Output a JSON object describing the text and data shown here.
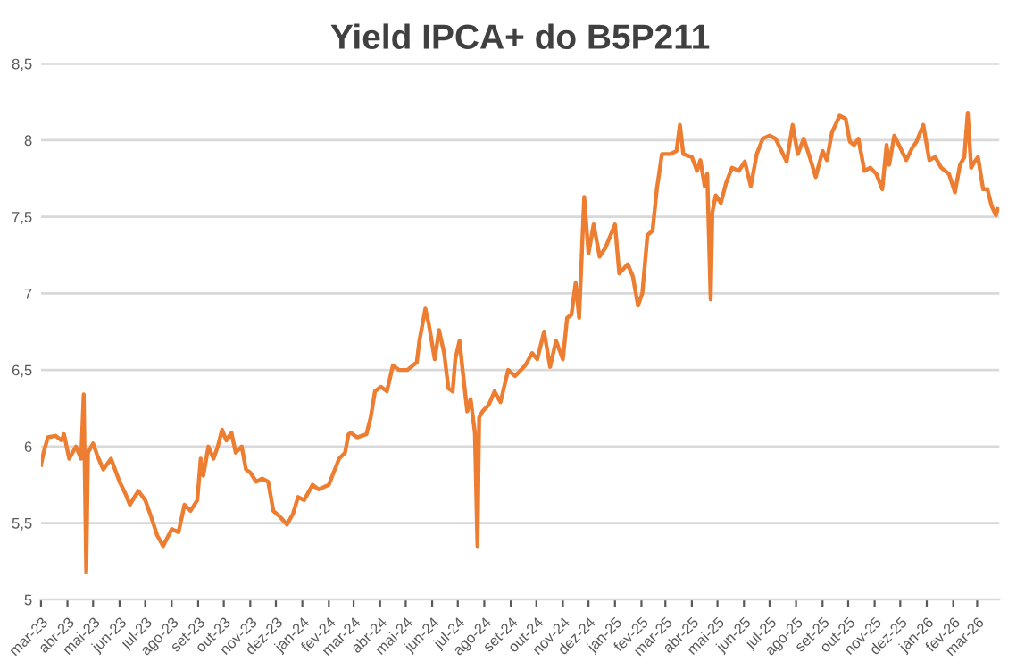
{
  "chart_data": {
    "type": "line",
    "title": "Yield IPCA+ do B5P211",
    "x": [
      "2023-03-01",
      "2023-03-04",
      "2023-03-09",
      "2023-03-18",
      "2023-03-25",
      "2023-03-28",
      "2023-04-03",
      "2023-04-11",
      "2023-04-17",
      "2023-04-20",
      "2023-04-23",
      "2023-04-25",
      "2023-05-01",
      "2023-05-06",
      "2023-05-13",
      "2023-05-22",
      "2023-06-01",
      "2023-06-08",
      "2023-06-13",
      "2023-06-23",
      "2023-07-01",
      "2023-07-08",
      "2023-07-15",
      "2023-07-22",
      "2023-08-01",
      "2023-08-09",
      "2023-08-16",
      "2023-08-23",
      "2023-08-31",
      "2023-09-04",
      "2023-09-07",
      "2023-09-13",
      "2023-09-19",
      "2023-09-24",
      "2023-09-29",
      "2023-10-04",
      "2023-10-10",
      "2023-10-15",
      "2023-10-22",
      "2023-10-27",
      "2023-11-01",
      "2023-11-08",
      "2023-11-15",
      "2023-11-22",
      "2023-11-28",
      "2023-12-06",
      "2023-12-14",
      "2023-12-21",
      "2023-12-27",
      "2024-01-03",
      "2024-01-13",
      "2024-01-20",
      "2024-02-01",
      "2024-02-08",
      "2024-02-13",
      "2024-02-20",
      "2024-02-24",
      "2024-02-27",
      "2024-03-05",
      "2024-03-16",
      "2024-03-21",
      "2024-03-26",
      "2024-04-02",
      "2024-04-09",
      "2024-04-16",
      "2024-04-23",
      "2024-05-03",
      "2024-05-14",
      "2024-05-17",
      "2024-05-24",
      "2024-05-28",
      "2024-06-04",
      "2024-06-09",
      "2024-06-15",
      "2024-06-20",
      "2024-06-25",
      "2024-06-28",
      "2024-07-03",
      "2024-07-07",
      "2024-07-12",
      "2024-07-16",
      "2024-07-21",
      "2024-07-24",
      "2024-07-26",
      "2024-07-30",
      "2024-08-06",
      "2024-08-13",
      "2024-08-20",
      "2024-08-29",
      "2024-09-06",
      "2024-09-18",
      "2024-09-26",
      "2024-10-02",
      "2024-10-10",
      "2024-10-17",
      "2024-10-24",
      "2024-11-01",
      "2024-11-06",
      "2024-11-11",
      "2024-11-16",
      "2024-11-20",
      "2024-11-26",
      "2024-12-01",
      "2024-12-07",
      "2024-12-14",
      "2024-12-21",
      "2025-01-01",
      "2025-01-06",
      "2025-01-16",
      "2025-01-22",
      "2025-01-28",
      "2025-02-02",
      "2025-02-08",
      "2025-02-14",
      "2025-02-19",
      "2025-02-25",
      "2025-03-07",
      "2025-03-14",
      "2025-03-18",
      "2025-03-22",
      "2025-04-01",
      "2025-04-07",
      "2025-04-11",
      "2025-04-16",
      "2025-04-19",
      "2025-04-23",
      "2025-04-25",
      "2025-04-29",
      "2025-05-05",
      "2025-05-11",
      "2025-05-18",
      "2025-05-26",
      "2025-06-02",
      "2025-06-09",
      "2025-06-16",
      "2025-06-23",
      "2025-07-01",
      "2025-07-08",
      "2025-07-15",
      "2025-07-21",
      "2025-07-28",
      "2025-08-03",
      "2025-08-10",
      "2025-08-17",
      "2025-08-24",
      "2025-09-01",
      "2025-09-06",
      "2025-09-12",
      "2025-09-21",
      "2025-09-28",
      "2025-10-03",
      "2025-10-08",
      "2025-10-13",
      "2025-10-20",
      "2025-10-27",
      "2025-11-03",
      "2025-11-10",
      "2025-11-15",
      "2025-11-18",
      "2025-11-24",
      "2025-12-01",
      "2025-12-08",
      "2025-12-15",
      "2025-12-20",
      "2025-12-28",
      "2026-01-04",
      "2026-01-11",
      "2026-01-18",
      "2026-01-27",
      "2026-02-03",
      "2026-02-09",
      "2026-02-14",
      "2026-02-18",
      "2026-02-22",
      "2026-02-26",
      "2026-03-02",
      "2026-03-08",
      "2026-03-13",
      "2026-03-18",
      "2026-03-23",
      "2026-03-25"
    ],
    "series": [
      {
        "color": "#ed7d31",
        "values": [
          5.88,
          5.96,
          6.06,
          6.07,
          6.04,
          6.08,
          5.92,
          6.0,
          5.92,
          6.34,
          5.18,
          5.96,
          6.02,
          5.94,
          5.85,
          5.92,
          5.77,
          5.69,
          5.62,
          5.71,
          5.65,
          5.54,
          5.42,
          5.35,
          5.46,
          5.44,
          5.62,
          5.58,
          5.65,
          5.92,
          5.81,
          6.0,
          5.92,
          6.0,
          6.11,
          6.04,
          6.09,
          5.96,
          6.0,
          5.85,
          5.83,
          5.77,
          5.79,
          5.77,
          5.58,
          5.54,
          5.49,
          5.56,
          5.67,
          5.65,
          5.75,
          5.72,
          5.75,
          5.85,
          5.92,
          5.96,
          6.08,
          6.09,
          6.06,
          6.08,
          6.19,
          6.36,
          6.39,
          6.36,
          6.53,
          6.5,
          6.5,
          6.55,
          6.69,
          6.9,
          6.8,
          6.57,
          6.76,
          6.61,
          6.38,
          6.36,
          6.57,
          6.69,
          6.48,
          6.23,
          6.31,
          6.09,
          5.35,
          6.19,
          6.23,
          6.27,
          6.36,
          6.29,
          6.5,
          6.46,
          6.53,
          6.61,
          6.57,
          6.75,
          6.52,
          6.69,
          6.57,
          6.84,
          6.86,
          7.07,
          6.84,
          7.63,
          7.26,
          7.45,
          7.24,
          7.3,
          7.45,
          7.13,
          7.19,
          7.11,
          6.92,
          7.0,
          7.38,
          7.41,
          7.68,
          7.91,
          7.91,
          7.93,
          8.1,
          7.91,
          7.89,
          7.8,
          7.87,
          7.7,
          7.78,
          6.96,
          7.53,
          7.64,
          7.59,
          7.72,
          7.82,
          7.8,
          7.86,
          7.7,
          7.91,
          8.01,
          8.03,
          8.01,
          7.93,
          7.86,
          8.1,
          7.91,
          8.01,
          7.89,
          7.76,
          7.93,
          7.87,
          8.05,
          8.16,
          8.14,
          7.99,
          7.97,
          8.01,
          7.8,
          7.82,
          7.78,
          7.68,
          7.97,
          7.84,
          8.03,
          7.95,
          7.87,
          7.95,
          7.99,
          8.1,
          7.87,
          7.89,
          7.82,
          7.78,
          7.66,
          7.84,
          7.89,
          8.18,
          7.82,
          7.86,
          7.89,
          7.68,
          7.68,
          7.57,
          7.51,
          7.55
        ]
      }
    ],
    "xlim": [
      "2023-03-01",
      "2026-03-27"
    ],
    "xticks": [
      {
        "value": "2023-03-01",
        "label": "mar-23"
      },
      {
        "value": "2023-04-01",
        "label": "abr-23"
      },
      {
        "value": "2023-05-01",
        "label": "mai-23"
      },
      {
        "value": "2023-06-01",
        "label": "jun-23"
      },
      {
        "value": "2023-07-01",
        "label": "jul-23"
      },
      {
        "value": "2023-08-01",
        "label": "ago-23"
      },
      {
        "value": "2023-09-01",
        "label": "set-23"
      },
      {
        "value": "2023-10-01",
        "label": "out-23"
      },
      {
        "value": "2023-11-01",
        "label": "nov-23"
      },
      {
        "value": "2023-12-01",
        "label": "dez-23"
      },
      {
        "value": "2024-01-01",
        "label": "jan-24"
      },
      {
        "value": "2024-02-01",
        "label": "fev-24"
      },
      {
        "value": "2024-03-01",
        "label": "mar-24"
      },
      {
        "value": "2024-04-01",
        "label": "abr-24"
      },
      {
        "value": "2024-05-01",
        "label": "mai-24"
      },
      {
        "value": "2024-06-01",
        "label": "jun-24"
      },
      {
        "value": "2024-07-01",
        "label": "jul-24"
      },
      {
        "value": "2024-08-01",
        "label": "ago-24"
      },
      {
        "value": "2024-09-01",
        "label": "set-24"
      },
      {
        "value": "2024-10-01",
        "label": "out-24"
      },
      {
        "value": "2024-11-01",
        "label": "nov-24"
      },
      {
        "value": "2024-12-01",
        "label": "dez-24"
      },
      {
        "value": "2025-01-01",
        "label": "jan-25"
      },
      {
        "value": "2025-02-01",
        "label": "fev-25"
      },
      {
        "value": "2025-03-01",
        "label": "mar-25"
      },
      {
        "value": "2025-04-01",
        "label": "abr-25"
      },
      {
        "value": "2025-05-01",
        "label": "mai-25"
      },
      {
        "value": "2025-06-01",
        "label": "jun-25"
      },
      {
        "value": "2025-07-01",
        "label": "jul-25"
      },
      {
        "value": "2025-08-01",
        "label": "ago-25"
      },
      {
        "value": "2025-09-01",
        "label": "set-25"
      },
      {
        "value": "2025-10-01",
        "label": "out-25"
      },
      {
        "value": "2025-11-01",
        "label": "nov-25"
      },
      {
        "value": "2025-12-01",
        "label": "dez-25"
      },
      {
        "value": "2026-01-01",
        "label": "jan-26"
      },
      {
        "value": "2026-02-01",
        "label": "fev-26"
      },
      {
        "value": "2026-03-01",
        "label": "mar-26"
      }
    ],
    "ylim": [
      5,
      8.5
    ],
    "yticks": [
      {
        "value": 5,
        "label": "5"
      },
      {
        "value": 5.5,
        "label": "5,5"
      },
      {
        "value": 6,
        "label": "6"
      },
      {
        "value": 6.5,
        "label": "6,5"
      },
      {
        "value": 7,
        "label": "7"
      },
      {
        "value": 7.5,
        "label": "7,5"
      },
      {
        "value": 8,
        "label": "8"
      },
      {
        "value": 8.5,
        "label": "8,5"
      }
    ],
    "grid": "y",
    "marker": "none",
    "line_style": "solid"
  }
}
